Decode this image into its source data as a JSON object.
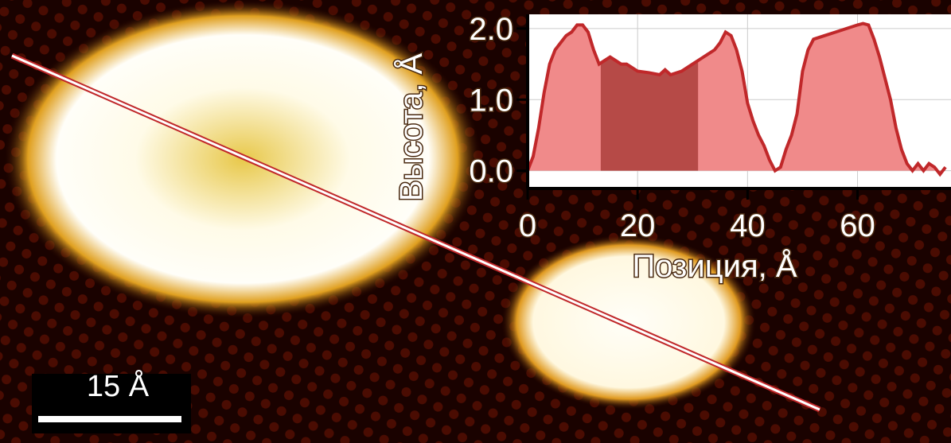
{
  "image": {
    "scale_bar_label": "15 Å"
  },
  "chart_data": {
    "type": "area",
    "x_label": "Позиция, Å",
    "y_label": "Высота, Å",
    "x": [
      0,
      1,
      2,
      3,
      4,
      5,
      6,
      7,
      8,
      9,
      10,
      11,
      12,
      13,
      14,
      15,
      16,
      17,
      18,
      19,
      20,
      22,
      24,
      25,
      26,
      28,
      30,
      32,
      34,
      35,
      36,
      37,
      38,
      39,
      40,
      41,
      42,
      43,
      44,
      45,
      46,
      47,
      48,
      49,
      50,
      51,
      52,
      54,
      56,
      58,
      60,
      61,
      62,
      63,
      64,
      65,
      66,
      67,
      68,
      69,
      70,
      71,
      72,
      73,
      74,
      75,
      76
    ],
    "values": [
      0.0,
      0.2,
      0.6,
      1.1,
      1.5,
      1.7,
      1.8,
      1.9,
      1.95,
      2.05,
      2.05,
      1.95,
      1.7,
      1.5,
      1.55,
      1.6,
      1.55,
      1.5,
      1.5,
      1.45,
      1.4,
      1.38,
      1.35,
      1.42,
      1.35,
      1.4,
      1.5,
      1.6,
      1.7,
      1.8,
      1.95,
      1.9,
      1.7,
      1.4,
      0.95,
      0.7,
      0.5,
      0.35,
      0.15,
      0.0,
      0.05,
      0.3,
      0.5,
      0.8,
      1.4,
      1.7,
      1.85,
      1.9,
      1.95,
      2.0,
      2.05,
      2.07,
      2.05,
      1.85,
      1.6,
      1.3,
      1.0,
      0.6,
      0.3,
      0.1,
      0.0,
      0.1,
      0.0,
      0.1,
      0.05,
      -0.05,
      0.05
    ],
    "color": "#f08a8a",
    "line_color": "#c0282a",
    "highlight_range": [
      13.3,
      31
    ],
    "highlight_color": "#a83a36",
    "xlim": [
      0,
      77
    ],
    "xticks": [
      0,
      20,
      40,
      60
    ],
    "ylim": [
      -0.25,
      2.2
    ],
    "yticks": [
      {
        "value": 0,
        "label": "0.0"
      },
      {
        "value": 1,
        "label": "1.0"
      },
      {
        "value": 2,
        "label": "2.0"
      }
    ],
    "grid": true
  }
}
